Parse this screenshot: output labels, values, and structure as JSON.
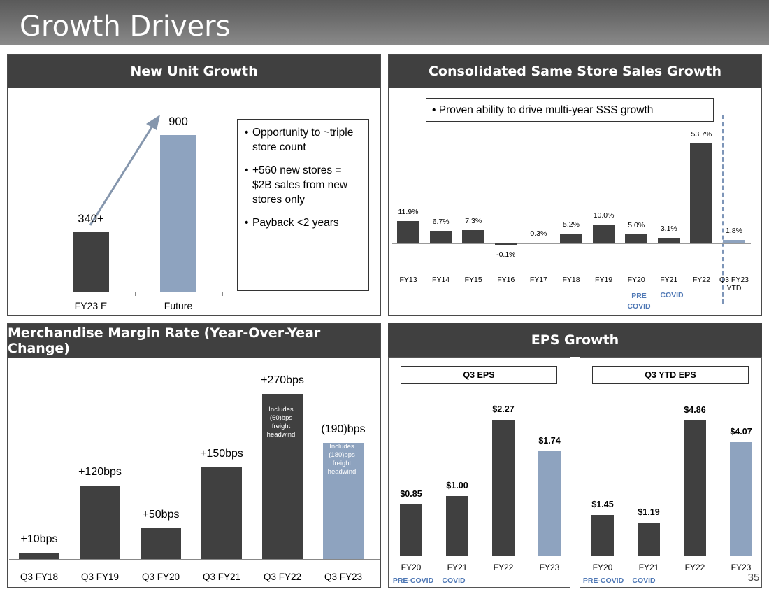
{
  "page": {
    "title": "Growth Drivers",
    "page_number": "35"
  },
  "colors": {
    "dark_bar": "#404040",
    "accent_bar": "#8ea3bf",
    "accent_text": "#4f78b5",
    "header_bg": "#404040"
  },
  "unit_growth": {
    "header": "New Unit Growth",
    "bullets": [
      "Opportunity to ~triple store count",
      "+560 new stores = $2B sales from new stores only",
      "Payback <2 years"
    ],
    "chart_data": {
      "type": "bar",
      "title": "New Unit Growth",
      "categories": [
        "FY23 E",
        "Future"
      ],
      "values": [
        340,
        900
      ],
      "labels": [
        "340+",
        "900"
      ],
      "ylim": [
        0,
        950
      ]
    }
  },
  "sss": {
    "header": "Consolidated Same Store Sales Growth",
    "callout": "Proven ability to drive multi-year SSS growth",
    "annotations": {
      "fy20": "PRE COVID",
      "fy21": "COVID"
    },
    "chart_data": {
      "type": "bar",
      "title": "Consolidated Same Store Sales Growth",
      "categories": [
        "FY13",
        "FY14",
        "FY15",
        "FY16",
        "FY17",
        "FY18",
        "FY19",
        "FY20",
        "FY21",
        "FY22",
        "Q3 FY23 YTD"
      ],
      "values": [
        11.9,
        6.7,
        7.3,
        -0.1,
        0.3,
        5.2,
        10.0,
        5.0,
        3.1,
        53.7,
        1.8
      ],
      "labels": [
        "11.9%",
        "6.7%",
        "7.3%",
        "-0.1%",
        "0.3%",
        "5.2%",
        "10.0%",
        "5.0%",
        "3.1%",
        "53.7%",
        "1.8%"
      ],
      "ylabel": "%"
    }
  },
  "margin": {
    "header": "Merchandise Margin Rate (Year-Over-Year Change)",
    "notes": {
      "q3fy22": "Includes (60)bps freight headwind",
      "q3fy23": "Includes (180)bps freight headwind"
    },
    "chart_data": {
      "type": "bar",
      "title": "Merchandise Margin Rate (Year-Over-Year Change)",
      "categories": [
        "Q3 FY18",
        "Q3 FY19",
        "Q3 FY20",
        "Q3 FY21",
        "Q3 FY22",
        "Q3 FY23"
      ],
      "values": [
        10,
        120,
        50,
        150,
        270,
        -190
      ],
      "labels": [
        "+10bps",
        "+120bps",
        "+50bps",
        "+150bps",
        "+270bps",
        "(190)bps"
      ],
      "ylabel": "bps"
    }
  },
  "eps": {
    "header": "EPS Growth",
    "q3": {
      "title": "Q3 EPS",
      "notes": {
        "fy20": "PRE-COVID",
        "fy21": "COVID"
      },
      "chart_data": {
        "type": "bar",
        "title": "Q3 EPS",
        "categories": [
          "FY20",
          "FY21",
          "FY22",
          "FY23"
        ],
        "values": [
          0.85,
          1.0,
          2.27,
          1.74
        ],
        "labels": [
          "$0.85",
          "$1.00",
          "$2.27",
          "$1.74"
        ]
      }
    },
    "ytd": {
      "title": "Q3 YTD EPS",
      "notes": {
        "fy20": "PRE-COVID",
        "fy21": "COVID"
      },
      "chart_data": {
        "type": "bar",
        "title": "Q3 YTD EPS",
        "categories": [
          "FY20",
          "FY21",
          "FY22",
          "FY23"
        ],
        "values": [
          1.45,
          1.19,
          4.86,
          4.07
        ],
        "labels": [
          "$1.45",
          "$1.19",
          "$4.86",
          "$4.07"
        ]
      }
    }
  }
}
